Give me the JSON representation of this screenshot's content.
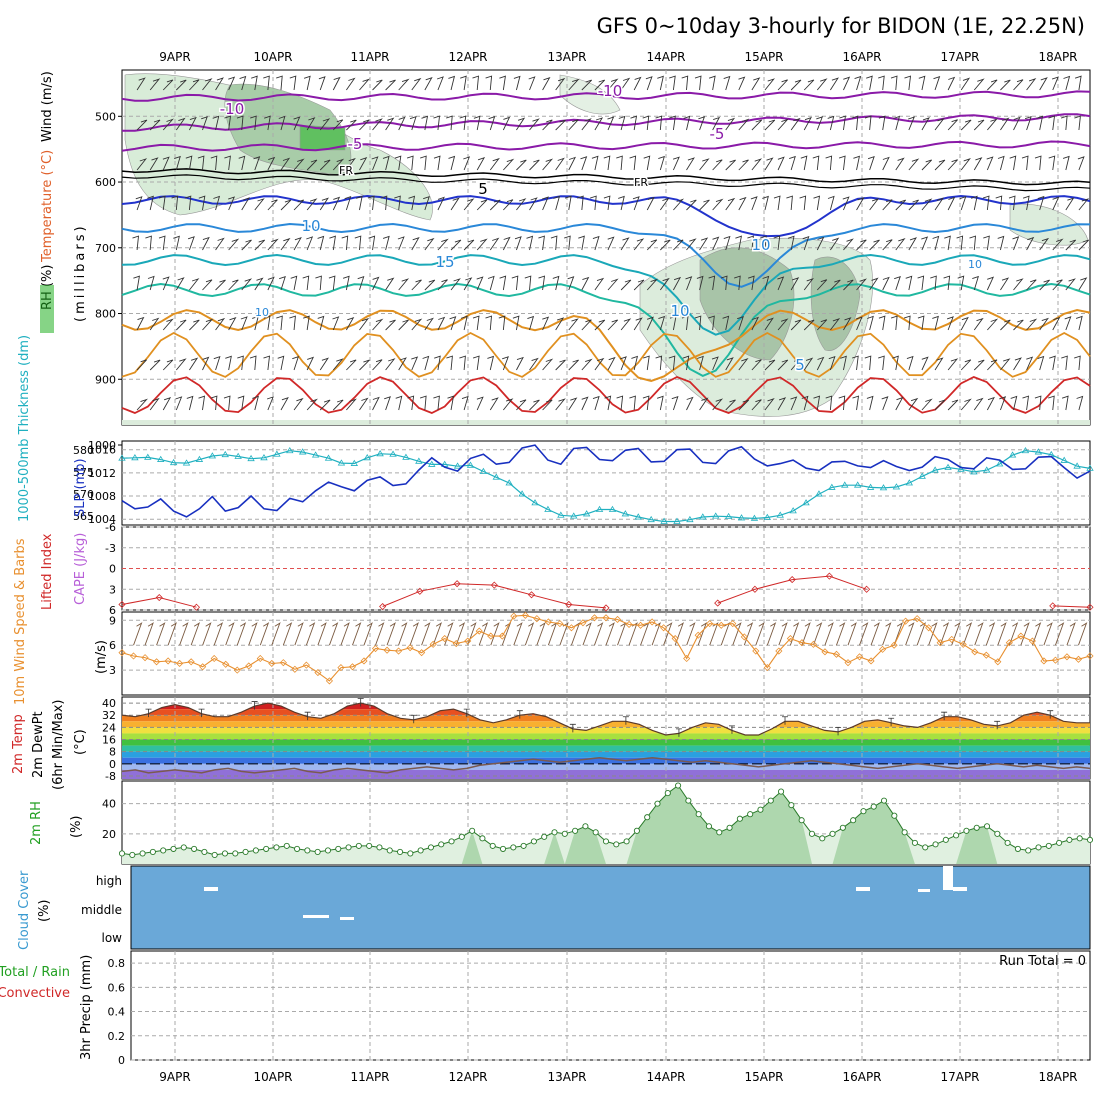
{
  "title": "GFS 0~10day 3-hourly for BIDON (1E, 22.25N)",
  "colors": {
    "purple": "#8a1aa8",
    "darkblue": "#2233cc",
    "midblue": "#2a88d8",
    "cyan": "#1aa8b8",
    "teal": "#20b8a0",
    "orange": "#e09020",
    "red": "#d02828",
    "green": "#22a022",
    "cloud": "#6aa8d8",
    "slp": "#1830c0",
    "thick": "#20b0c0",
    "wind10": "#e89030"
  },
  "chart_data": [
    {
      "id": "upper-air",
      "type": "heatmap",
      "xlabel": "",
      "ylabel": "(millibars)",
      "x_ticks": [
        "9APR",
        "10APR",
        "11APR",
        "12APR",
        "13APR",
        "14APR",
        "15APR",
        "16APR",
        "17APR",
        "18APR"
      ],
      "y_ticks": [
        "500",
        "600",
        "700",
        "800",
        "900",
        "1000"
      ],
      "ylim": [
        1000,
        460
      ],
      "labels": {
        "rh": "RH (%)",
        "temperature": "Temperature (°C)",
        "wind": "Wind (m/s)"
      },
      "contour_labels": [
        "-10",
        "-10",
        "-5",
        "-5",
        "FR",
        "FR",
        "5",
        "10",
        "10",
        "15",
        "5",
        "10",
        "10",
        "10"
      ]
    },
    {
      "id": "thickness-slp",
      "type": "line",
      "labels": {
        "thickness": "1000-500mb Thickness (dm)",
        "slp": "SLP (mb)"
      },
      "left_ticks": [
        "580",
        "575",
        "570",
        "565"
      ],
      "right_ticks": [
        "1016",
        "1012",
        "1008",
        "1004"
      ],
      "thickness_range": [
        563,
        582
      ],
      "slp_range": [
        1003,
        1017.5
      ],
      "series": [
        {
          "name": "SLP",
          "values": [
            1007.2,
            1005.8,
            1006.1,
            1007.5,
            1005.4,
            1004.4,
            1005.8,
            1007.9,
            1005.4,
            1006.0,
            1008.0,
            1005.8,
            1005.5,
            1007.6,
            1007.0,
            1008.9,
            1010.4,
            1009.6,
            1008.9,
            1010.7,
            1011.3,
            1009.8,
            1010.1,
            1012.5,
            1014.6,
            1013.0,
            1012.3,
            1014.5,
            1015.2,
            1013.5,
            1013.8,
            1016.3,
            1016.8,
            1014.2,
            1013.5,
            1016.2,
            1016.4,
            1014.3,
            1014.1,
            1015.9,
            1016.2,
            1013.9,
            1014.0,
            1016.0,
            1016.1,
            1013.8,
            1013.6,
            1015.8,
            1016.5,
            1014.4,
            1013.2,
            1013.6,
            1014.2,
            1012.8,
            1012.4,
            1013.9,
            1014.0,
            1013.2,
            1012.9,
            1014.1,
            1013.1,
            1012.4,
            1013.0,
            1014.8,
            1014.3,
            1012.9,
            1012.7,
            1014.6,
            1014.2,
            1012.6,
            1012.7,
            1014.7,
            1014.8,
            1012.9,
            1011.1,
            1012.3
          ]
        },
        {
          "name": "Thickness",
          "values": [
            578.1,
            578.2,
            578.3,
            577.8,
            577.1,
            577.0,
            577.8,
            578.6,
            578.9,
            578.5,
            578.0,
            578.2,
            579.0,
            579.8,
            579.5,
            578.8,
            578.1,
            577.0,
            576.9,
            578.2,
            579.1,
            579.0,
            578.3,
            577.4,
            576.7,
            576.7,
            576.3,
            576.5,
            575.1,
            573.8,
            572.5,
            570.0,
            568.0,
            566.5,
            565.2,
            565.0,
            565.5,
            566.5,
            566.5,
            565.5,
            564.8,
            564.2,
            563.8,
            563.8,
            564.2,
            564.8,
            565.0,
            564.9,
            564.6,
            564.5,
            564.7,
            565.2,
            566.2,
            568.0,
            570.0,
            571.5,
            572.0,
            572.0,
            571.5,
            571.4,
            571.6,
            572.5,
            574.0,
            575.4,
            576.0,
            575.6,
            575.0,
            575.4,
            576.8,
            578.8,
            579.8,
            579.5,
            578.9,
            577.6,
            576.3,
            575.8
          ]
        }
      ]
    },
    {
      "id": "cape-li",
      "type": "line",
      "labels": {
        "li": "Lifted Index",
        "cape": "CAPE (J/kg)"
      },
      "ticks": [
        "-6",
        "-3",
        "0",
        "3",
        "6"
      ],
      "range": [
        -6,
        6
      ],
      "values": [
        5.2,
        4.2,
        5.6,
        null,
        null,
        null,
        null,
        5.5,
        3.3,
        2.2,
        2.4,
        3.8,
        5.2,
        5.7,
        null,
        null,
        5.0,
        3.0,
        1.6,
        1.1,
        3.0,
        null,
        null,
        null,
        null,
        5.4,
        5.6
      ]
    },
    {
      "id": "wind10",
      "type": "line",
      "labels": {
        "wind": "10m Wind Speed & Barbs",
        "unit": "(m/s)"
      },
      "ticks": [
        "9",
        "6",
        "3"
      ],
      "range": [
        0,
        10
      ],
      "values": [
        5.1,
        4.7,
        4.5,
        4.0,
        4.1,
        3.8,
        4.0,
        3.4,
        4.4,
        3.7,
        3.0,
        3.5,
        4.4,
        3.8,
        3.9,
        3.1,
        3.6,
        2.7,
        1.7,
        3.3,
        3.4,
        4.1,
        5.6,
        5.4,
        5.3,
        5.7,
        5.1,
        6.1,
        6.8,
        6.2,
        6.5,
        7.7,
        7.1,
        7.1,
        9.5,
        9.6,
        9.2,
        8.8,
        8.6,
        8.1,
        8.7,
        9.3,
        9.3,
        9.1,
        8.5,
        8.4,
        8.8,
        8.1,
        6.8,
        4.4,
        7.2,
        8.6,
        8.4,
        8.6,
        7.0,
        5.3,
        3.3,
        5.3,
        6.8,
        6.3,
        6.1,
        5.2,
        4.9,
        3.9,
        4.6,
        4.1,
        5.5,
        6.0,
        8.9,
        9.2,
        8.1,
        6.3,
        6.7,
        6.1,
        5.2,
        4.8,
        4.0,
        6.3,
        7.1,
        6.5,
        4.1,
        4.2,
        4.6,
        4.3,
        4.7
      ]
    },
    {
      "id": "temp2m",
      "type": "area",
      "labels": {
        "temp": "2m Temp",
        "dewpt": "2m DewPt",
        "minmax": "(6hr Min/Max)",
        "unit": "(°C)"
      },
      "ticks": [
        "40",
        "32",
        "24",
        "16",
        "8",
        "0",
        "-8"
      ],
      "range": [
        -10,
        44
      ],
      "temp": [
        32,
        31,
        33,
        37,
        39,
        37,
        33,
        31,
        31,
        34,
        38,
        40,
        38,
        34,
        31,
        30,
        33,
        38,
        40,
        38,
        33,
        30,
        29,
        31,
        35,
        36,
        33,
        29,
        27,
        29,
        32,
        33,
        31,
        27,
        23,
        22,
        25,
        28,
        28,
        26,
        22,
        19,
        20,
        24,
        27,
        26,
        22,
        19,
        19,
        23,
        28,
        28,
        25,
        22,
        21,
        24,
        28,
        29,
        27,
        25,
        24,
        27,
        31,
        31,
        29,
        26,
        25,
        27,
        32,
        34,
        32,
        28,
        27,
        27
      ],
      "dewpoint": [
        -5,
        -4,
        -6,
        -5,
        -4,
        -5,
        -6,
        -4,
        -3,
        -5,
        -6,
        -5,
        -4,
        -3,
        -5,
        -6,
        -4,
        -3,
        -4,
        -5,
        -6,
        -4,
        -3,
        -2,
        -3,
        -4,
        -3,
        -1,
        0,
        1,
        2,
        3,
        2,
        1,
        2,
        3,
        4,
        3,
        2,
        3,
        4,
        3,
        2,
        1,
        2,
        1,
        0,
        -1,
        -2,
        -1,
        0,
        1,
        2,
        1,
        0,
        -1,
        -2,
        -3,
        -2,
        -1,
        0,
        -1,
        -2,
        -3,
        -2,
        -1,
        0,
        -1,
        -2,
        -1,
        -2,
        -3,
        -2,
        -3
      ]
    },
    {
      "id": "rh2m",
      "type": "area",
      "labels": {
        "rh": "2m RH",
        "unit": "(%)"
      },
      "ticks": [
        "40",
        "20"
      ],
      "range": [
        0,
        55
      ],
      "values": [
        7,
        6,
        7,
        8,
        9,
        10,
        11,
        10,
        8,
        6,
        7,
        7,
        8,
        9,
        10,
        11,
        12,
        10,
        9,
        8,
        9,
        10,
        11,
        12,
        12,
        11,
        9,
        8,
        7,
        9,
        11,
        13,
        15,
        18,
        22,
        17,
        12,
        10,
        11,
        12,
        15,
        18,
        21,
        20,
        22,
        25,
        21,
        15,
        13,
        15,
        22,
        31,
        40,
        47,
        52,
        42,
        33,
        25,
        21,
        24,
        30,
        33,
        36,
        42,
        48,
        39,
        29,
        20,
        17,
        20,
        24,
        29,
        35,
        38,
        42,
        32,
        21,
        14,
        11,
        13,
        16,
        19,
        22,
        24,
        25,
        20,
        14,
        10,
        9,
        11,
        12,
        14,
        16,
        17,
        16
      ]
    },
    {
      "id": "cloud",
      "type": "heatmap",
      "labels": {
        "cloud": "Cloud Cover",
        "unit": "(%)"
      },
      "levels": [
        "high",
        "middle",
        "low"
      ]
    },
    {
      "id": "precip",
      "type": "bar",
      "labels": {
        "precip": "Total / Rain",
        "convective": "Convective",
        "axis": "3hr Precip (mm)"
      },
      "ticks": [
        "0.8",
        "0.6",
        "0.4",
        "0.2",
        "0"
      ],
      "range": [
        0,
        0.9
      ],
      "run_total": "Run Total = 0",
      "values": []
    }
  ]
}
